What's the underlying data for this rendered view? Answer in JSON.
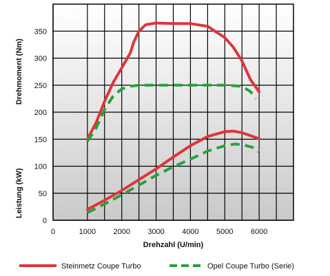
{
  "chart_data": {
    "type": "line",
    "title": "",
    "xlabel": "Drehzahl (U/min)",
    "ylabel_top": "Drehmoment (Nm)",
    "ylabel_bottom": "Leistung (kW)",
    "xlim": [
      0,
      7000
    ],
    "x_ticks": [
      0,
      1000,
      2000,
      3000,
      4000,
      5000,
      6000
    ],
    "x_tick_labels": [
      "0",
      "1000",
      "2000",
      "3000",
      "4000",
      "5000",
      "6000"
    ],
    "ylim": [
      0,
      400
    ],
    "y_ticks": [
      0,
      50,
      100,
      150,
      200,
      250,
      300,
      350
    ],
    "y_tick_labels": [
      "0",
      "50",
      "100",
      "150",
      "200",
      "250",
      "300",
      "350"
    ],
    "grid": true,
    "legend_position": "bottom",
    "series": [
      {
        "name": "Steinmetz Coupe Turbo",
        "quantity": "Drehmoment",
        "color": "#e0343a",
        "dash": "solid",
        "points": [
          [
            1000,
            150
          ],
          [
            1250,
            180
          ],
          [
            1500,
            220
          ],
          [
            1750,
            255
          ],
          [
            2000,
            282
          ],
          [
            2250,
            310
          ],
          [
            2350,
            330
          ],
          [
            2500,
            350
          ],
          [
            2700,
            362
          ],
          [
            3000,
            365
          ],
          [
            3500,
            364
          ],
          [
            4000,
            364
          ],
          [
            4500,
            359
          ],
          [
            5000,
            338
          ],
          [
            5250,
            320
          ],
          [
            5500,
            295
          ],
          [
            5750,
            260
          ],
          [
            6000,
            238
          ]
        ]
      },
      {
        "name": "Opel Coupe Turbo (Serie)",
        "quantity": "Drehmoment",
        "color": "#22a33a",
        "dash": "dashed",
        "points": [
          [
            1000,
            146
          ],
          [
            1250,
            170
          ],
          [
            1500,
            205
          ],
          [
            1750,
            230
          ],
          [
            2000,
            243
          ],
          [
            2250,
            248
          ],
          [
            2500,
            250
          ],
          [
            3000,
            250
          ],
          [
            3500,
            250
          ],
          [
            4000,
            250
          ],
          [
            4500,
            250
          ],
          [
            5000,
            250
          ],
          [
            5500,
            248
          ],
          [
            5750,
            238
          ],
          [
            5900,
            225
          ]
        ]
      },
      {
        "name": "Steinmetz Coupe Turbo",
        "quantity": "Leistung",
        "color": "#e0343a",
        "dash": "solid",
        "points": [
          [
            1000,
            20
          ],
          [
            1500,
            37
          ],
          [
            2000,
            55
          ],
          [
            2500,
            75
          ],
          [
            3000,
            95
          ],
          [
            3500,
            117
          ],
          [
            4000,
            138
          ],
          [
            4500,
            155
          ],
          [
            5000,
            164
          ],
          [
            5250,
            165
          ],
          [
            5500,
            162
          ],
          [
            6000,
            151
          ]
        ]
      },
      {
        "name": "Opel Coupe Turbo (Serie)",
        "quantity": "Leistung",
        "color": "#22a33a",
        "dash": "dashed",
        "points": [
          [
            1000,
            14
          ],
          [
            1500,
            30
          ],
          [
            2000,
            47
          ],
          [
            2500,
            65
          ],
          [
            3000,
            83
          ],
          [
            3500,
            99
          ],
          [
            4000,
            113
          ],
          [
            4500,
            128
          ],
          [
            5000,
            138
          ],
          [
            5300,
            141
          ],
          [
            5500,
            140
          ],
          [
            5800,
            135
          ],
          [
            6000,
            127
          ]
        ]
      }
    ],
    "legend": [
      {
        "label": "Steinmetz Coupe Turbo",
        "color": "#e0343a",
        "dash": "solid"
      },
      {
        "label": "Opel Coupe Turbo (Serie)",
        "color": "#22a33a",
        "dash": "dashed"
      }
    ]
  }
}
